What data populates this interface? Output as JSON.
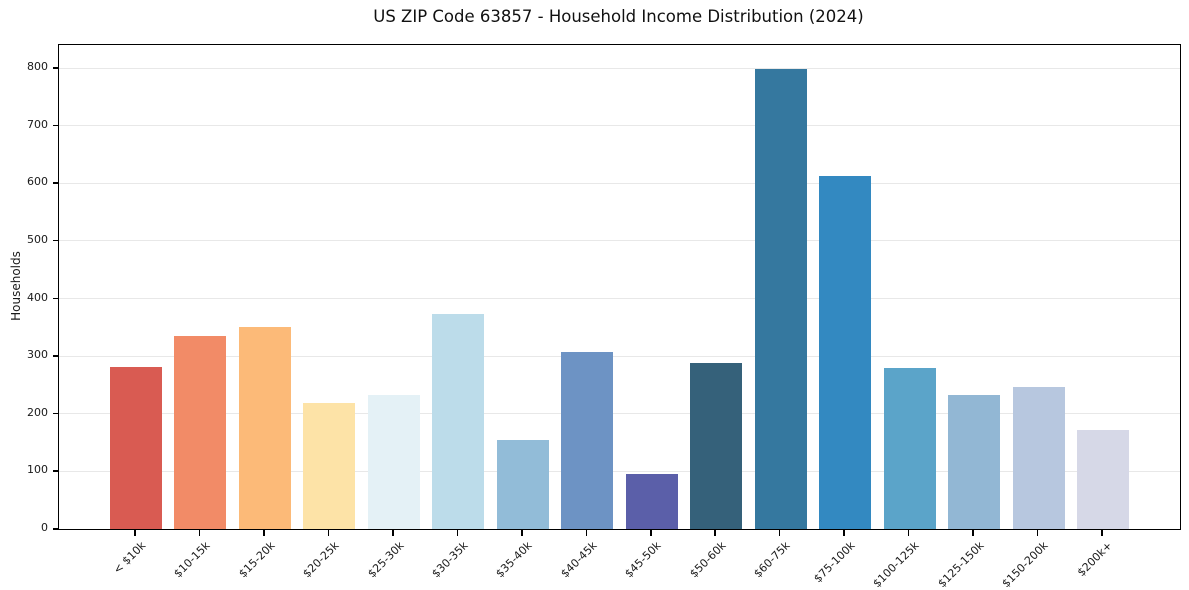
{
  "title": "US ZIP Code 63857 - Household Income Distribution (2024)",
  "chart_data": {
    "type": "bar",
    "title": "US ZIP Code 63857 - Household Income Distribution (2024)",
    "xlabel": "",
    "ylabel": "Households",
    "ylim": [
      0,
      840
    ],
    "yticks": [
      0,
      100,
      200,
      300,
      400,
      500,
      600,
      700,
      800
    ],
    "grid": "horizontal",
    "legend": "none",
    "categories": [
      "< $10k",
      "$10-15k",
      "$15-20k",
      "$20-25k",
      "$25-30k",
      "$30-35k",
      "$35-40k",
      "$40-45k",
      "$45-50k",
      "$50-60k",
      "$60-75k",
      "$75-100k",
      "$100-125k",
      "$125-150k",
      "$150-200k",
      "$200k+"
    ],
    "values": [
      281,
      335,
      351,
      218,
      232,
      374,
      155,
      308,
      96,
      288,
      799,
      612,
      279,
      232,
      246,
      171
    ],
    "bar_colors": [
      "#d95b52",
      "#f28b67",
      "#fcba78",
      "#fde3a7",
      "#e4f1f6",
      "#bcdcea",
      "#92bcd8",
      "#6d93c4",
      "#5b5fa9",
      "#35617a",
      "#35789f",
      "#3389c1",
      "#5ba4c9",
      "#92b7d4",
      "#b7c7df",
      "#d6d8e7"
    ]
  }
}
